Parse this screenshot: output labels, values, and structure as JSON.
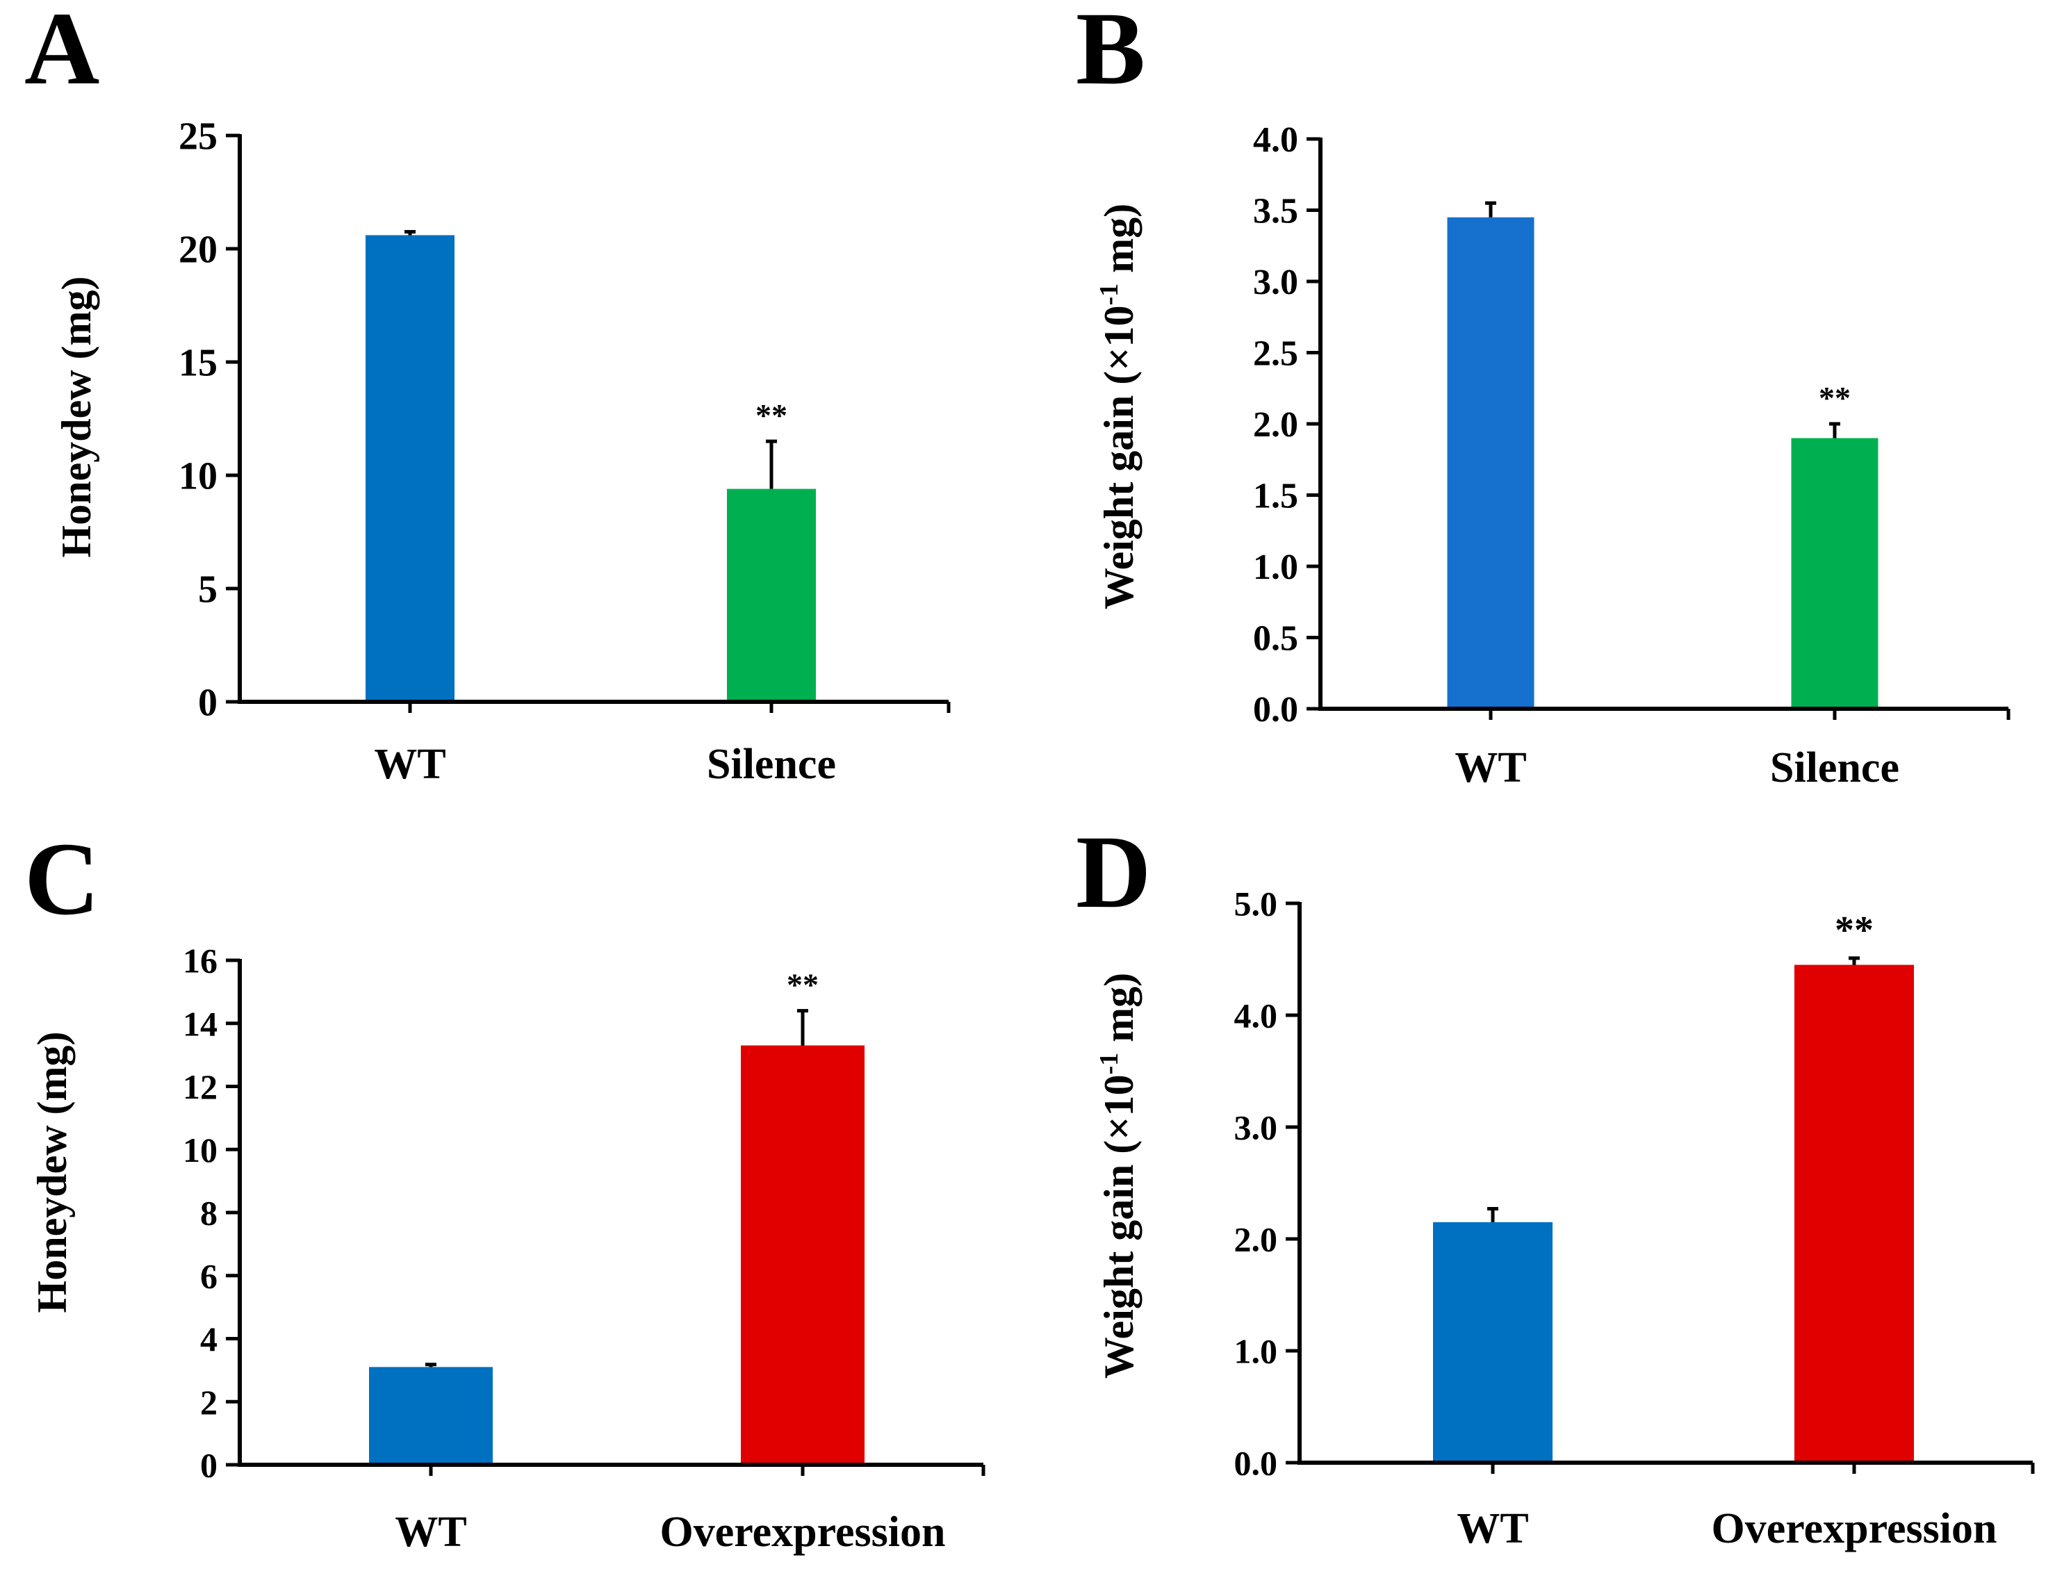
{
  "chart_data": [
    {
      "panel": "A",
      "type": "bar",
      "categories": [
        "WT",
        "Silence"
      ],
      "values": [
        20.6,
        9.4
      ],
      "errors": [
        0.15,
        2.1
      ],
      "colors": [
        "#0070C0",
        "#00B050"
      ],
      "significance": [
        "",
        "**"
      ],
      "ylabel": "Honeydew (mg)",
      "ylim": [
        0,
        25
      ],
      "yticks": [
        "0",
        "5",
        "10",
        "15",
        "20",
        "25"
      ]
    },
    {
      "panel": "B",
      "type": "bar",
      "categories": [
        "WT",
        "Silence"
      ],
      "values": [
        3.45,
        1.9
      ],
      "errors": [
        0.1,
        0.1
      ],
      "colors": [
        "#1570CE",
        "#00B050"
      ],
      "significance": [
        "",
        "**"
      ],
      "ylabel_main": "Weight gain (×10",
      "ylabel_exp": "-1",
      "ylabel_tail": " mg)",
      "ylim": [
        0,
        4
      ],
      "yticks": [
        "0.0",
        "0.5",
        "1.0",
        "1.5",
        "2.0",
        "2.5",
        "3.0",
        "3.5",
        "4.0"
      ]
    },
    {
      "panel": "C",
      "type": "bar",
      "categories": [
        "WT",
        "Overexpression"
      ],
      "values": [
        3.1,
        13.3
      ],
      "errors": [
        0.08,
        1.1
      ],
      "colors": [
        "#0070C0",
        "#E00000"
      ],
      "significance": [
        "",
        "**"
      ],
      "ylabel": "Honeydew (mg)",
      "ylim": [
        0,
        16
      ],
      "yticks": [
        "0",
        "2",
        "4",
        "6",
        "8",
        "10",
        "12",
        "14",
        "16"
      ]
    },
    {
      "panel": "D",
      "type": "bar",
      "categories": [
        "WT",
        "Overexpression"
      ],
      "values": [
        2.15,
        4.45
      ],
      "errors": [
        0.12,
        0.06
      ],
      "colors": [
        "#0070C0",
        "#E00000"
      ],
      "significance": [
        "",
        "**"
      ],
      "ylabel_main": "Weight gain (×10",
      "ylabel_exp": "-1",
      "ylabel_tail": " mg)",
      "ylim": [
        0,
        5
      ],
      "yticks": [
        "0.0",
        "1.0",
        "2.0",
        "3.0",
        "4.0",
        "5.0"
      ]
    }
  ]
}
